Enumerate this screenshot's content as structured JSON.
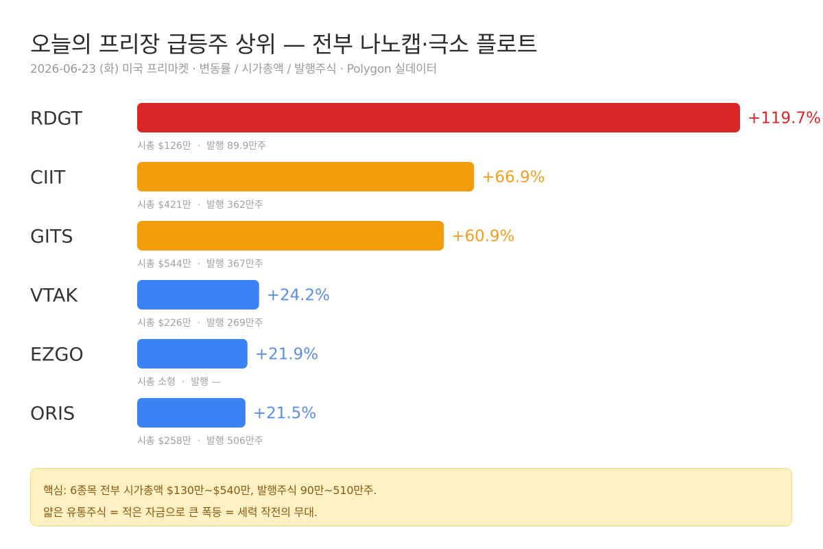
{
  "header": {
    "title": "오늘의 프리장 급등주 상위 — 전부 나노캡·극소 플로트",
    "subtitle": "2026-06-23 (화) 미국 프리마켓 · 변동률 / 시가총액 / 발행주식 · Polygon 실데이터"
  },
  "chart_data": {
    "type": "bar",
    "orientation": "horizontal",
    "title": "오늘의 프리장 급등주 상위 — 전부 나노캡·극소 플로트",
    "categories": [
      "RDGT",
      "CIIT",
      "GITS",
      "VTAK",
      "EZGO",
      "ORIS"
    ],
    "values": [
      119.7,
      66.9,
      60.9,
      24.2,
      21.9,
      21.5
    ],
    "value_labels": [
      "+119.7%",
      "+66.9%",
      "+60.9%",
      "+24.2%",
      "+21.9%",
      "+21.5%"
    ],
    "meta_labels": [
      "시총 $126만  ·  발행 89.9만주",
      "시총 $421만  ·  발행 362만주",
      "시총 $544만  ·  발행 367만주",
      "시총 $226만  ·  발행 269만주",
      "시총 소형  ·  발행 —",
      "시총 $258만  ·  발행 506만주"
    ],
    "xlim": [
      0,
      119.7
    ],
    "grid": false,
    "colors": {
      "extreme": "#dc2626",
      "high": "#f29e0c",
      "moderate": "#3b82f6"
    },
    "value_label_colors": {
      "extreme": "#dc2626",
      "high": "#f0a020",
      "moderate": "#5b8ee6"
    },
    "bar_tiers": [
      "extreme",
      "high",
      "high",
      "moderate",
      "moderate",
      "moderate"
    ]
  },
  "note": {
    "line1": "핵심: 6종목 전부 시가총액 $130만~$540만, 발행주식 90만~510만주.",
    "line2": "얇은 유통주식 = 적은 자금으로 큰 폭등 = 세력 작전의 무대."
  }
}
